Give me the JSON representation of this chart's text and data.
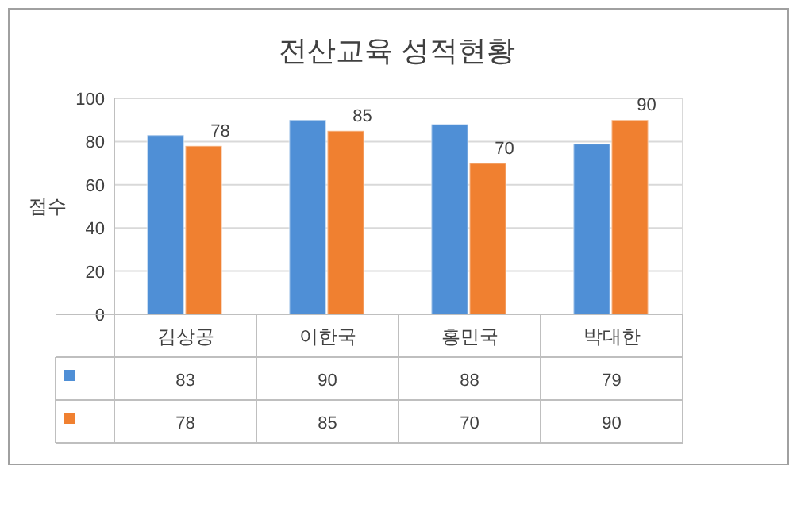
{
  "chart_data": {
    "type": "bar",
    "title": "전산교육 성적현황",
    "ylabel": "점수",
    "categories": [
      "김상공",
      "이한국",
      "홍민국",
      "박대한"
    ],
    "series": [
      {
        "color": "#4f8fd6",
        "values": [
          83,
          90,
          88,
          79
        ]
      },
      {
        "color": "#f08030",
        "values": [
          78,
          85,
          70,
          90
        ],
        "value_labels": [
          "78",
          "85",
          "70",
          "90"
        ]
      }
    ],
    "ylim": [
      0,
      100
    ],
    "yticks": [
      0,
      20,
      40,
      60,
      80,
      100
    ],
    "grid": "y",
    "data_labels": true
  }
}
